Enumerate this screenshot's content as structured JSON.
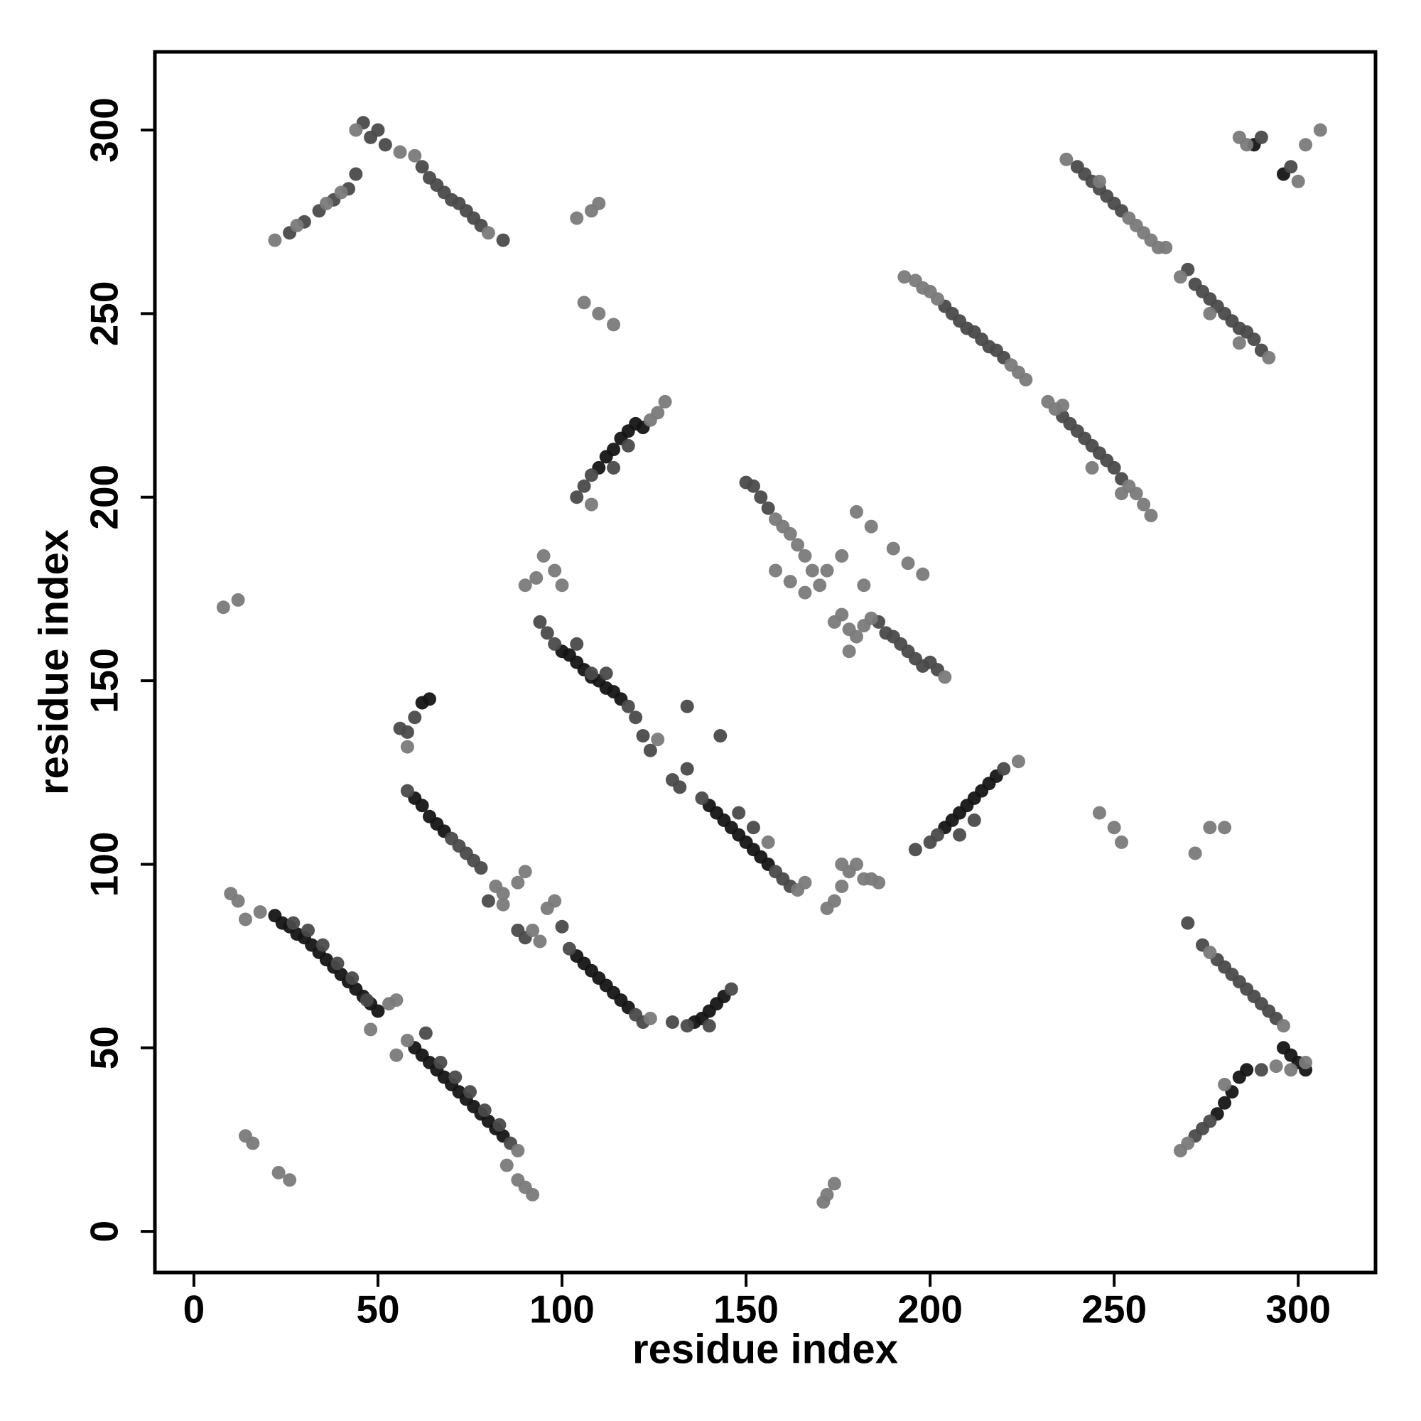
{
  "chart_data": {
    "type": "scatter",
    "xlabel": "residue index",
    "ylabel": "residue index",
    "xlim": [
      -10.6,
      321
    ],
    "ylim": [
      -11.2,
      321.3
    ],
    "xticks": [
      0,
      50,
      100,
      150,
      200,
      250,
      300
    ],
    "yticks": [
      0,
      50,
      100,
      150,
      200,
      250,
      300
    ],
    "series": [
      {
        "color": "#151515",
        "x": [
          22,
          24,
          26,
          28,
          30,
          32,
          34,
          36,
          38,
          40,
          42,
          44,
          46,
          48,
          50,
          60,
          62,
          64,
          66,
          68,
          70,
          72,
          74,
          76,
          78,
          80,
          82,
          84,
          110,
          112,
          114,
          116,
          118,
          120,
          122,
          100,
          102,
          104,
          106,
          108,
          110,
          112,
          114,
          116,
          140,
          142,
          144,
          146,
          148,
          150,
          152,
          154,
          156,
          104,
          106,
          108,
          110,
          112,
          114,
          116,
          118,
          136,
          138,
          140,
          142,
          144,
          204,
          206,
          208,
          210,
          212,
          214,
          216,
          218,
          60,
          62,
          64,
          66,
          68,
          62,
          64,
          296,
          298,
          300,
          302,
          278,
          280,
          282,
          284,
          286,
          288,
          296
        ],
        "values": [
          86,
          84,
          83,
          81,
          80,
          78,
          76,
          74,
          72,
          70,
          68,
          66,
          64,
          62,
          60,
          50,
          48,
          46,
          44,
          42,
          40,
          38,
          36,
          34,
          32,
          30,
          28,
          26,
          208,
          211,
          213,
          216,
          218,
          220,
          219,
          158,
          157,
          155,
          153,
          151,
          150,
          148,
          147,
          145,
          116,
          114,
          112,
          110,
          108,
          106,
          104,
          102,
          100,
          75,
          73,
          71,
          69,
          67,
          65,
          63,
          61,
          57,
          58,
          60,
          62,
          64,
          110,
          112,
          114,
          116,
          118,
          120,
          122,
          124,
          118,
          116,
          113,
          111,
          109,
          144,
          145,
          50,
          48,
          46,
          44,
          32,
          35,
          38,
          42,
          44,
          296,
          288
        ]
      },
      {
        "color": "#4a4a4a",
        "x": [
          27,
          31,
          35,
          39,
          43,
          47,
          63,
          67,
          71,
          75,
          79,
          83,
          86,
          26,
          30,
          34,
          38,
          42,
          44,
          46,
          48,
          50,
          52,
          62,
          64,
          66,
          68,
          70,
          72,
          74,
          76,
          78,
          84,
          104,
          106,
          108,
          114,
          118,
          94,
          96,
          98,
          104,
          108,
          112,
          118,
          120,
          122,
          124,
          130,
          132,
          138,
          158,
          160,
          162,
          134,
          143,
          148,
          152,
          58,
          58,
          70,
          72,
          74,
          76,
          78,
          80,
          56,
          60,
          88,
          90,
          100,
          102,
          120,
          122,
          130,
          134,
          140,
          146,
          150,
          152,
          154,
          156,
          186,
          188,
          190,
          192,
          194,
          196,
          198,
          200,
          202,
          196,
          200,
          202,
          220,
          208,
          212,
          204,
          206,
          208,
          210,
          212,
          214,
          216,
          218,
          220,
          236,
          238,
          240,
          242,
          244,
          246,
          248,
          250,
          252,
          240,
          242,
          244,
          246,
          248,
          250,
          252,
          270,
          272,
          274,
          276,
          278,
          280,
          282,
          284,
          286,
          288,
          290,
          270,
          274,
          278,
          280,
          282,
          284,
          286,
          288,
          290,
          292,
          294,
          272,
          274,
          276,
          290,
          290,
          298,
          134
        ],
        "values": [
          84,
          82,
          78,
          73,
          69,
          63,
          54,
          46,
          42,
          38,
          33,
          29,
          24,
          272,
          275,
          278,
          281,
          284,
          288,
          302,
          298,
          300,
          296,
          290,
          287,
          285,
          283,
          281,
          280,
          278,
          276,
          274,
          270,
          200,
          203,
          206,
          208,
          214,
          166,
          163,
          160,
          160,
          152,
          152,
          143,
          140,
          135,
          131,
          123,
          121,
          118,
          98,
          96,
          94,
          143,
          135,
          114,
          110,
          120,
          136,
          107,
          105,
          103,
          101,
          99,
          90,
          137,
          140,
          82,
          80,
          83,
          77,
          59,
          57,
          57,
          56,
          56,
          66,
          204,
          203,
          200,
          197,
          166,
          163,
          162,
          160,
          158,
          156,
          154,
          155,
          153,
          104,
          106,
          108,
          126,
          108,
          112,
          252,
          250,
          248,
          246,
          245,
          243,
          241,
          240,
          238,
          222,
          220,
          218,
          216,
          214,
          212,
          210,
          208,
          205,
          290,
          288,
          286,
          284,
          282,
          280,
          278,
          262,
          258,
          256,
          254,
          252,
          250,
          248,
          246,
          245,
          243,
          240,
          84,
          78,
          74,
          72,
          70,
          68,
          66,
          64,
          62,
          60,
          58,
          26,
          28,
          30,
          44,
          298,
          290,
          126
        ]
      },
      {
        "color": "#7a7a7a",
        "x": [
          8,
          12,
          10,
          12,
          14,
          18,
          16,
          14,
          23,
          26,
          104,
          108,
          110,
          106,
          110,
          114,
          171,
          172,
          174,
          246,
          250,
          252,
          272,
          276,
          280,
          284,
          286,
          300,
          302,
          306,
          48,
          53,
          55,
          55,
          58,
          85,
          88,
          90,
          92,
          88,
          22,
          28,
          36,
          40,
          44,
          56,
          60,
          80,
          124,
          126,
          128,
          108,
          90,
          93,
          95,
          98,
          100,
          126,
          164,
          166,
          156,
          58,
          82,
          84,
          84,
          88,
          90,
          92,
          94,
          96,
          98,
          124,
          158,
          160,
          162,
          164,
          166,
          168,
          166,
          170,
          172,
          174,
          176,
          178,
          180,
          182,
          184,
          204,
          176,
          180,
          184,
          190,
          194,
          198,
          158,
          162,
          178,
          182,
          224,
          172,
          174,
          176,
          178,
          180,
          182,
          184,
          186,
          176,
          193,
          196,
          198,
          200,
          202,
          222,
          224,
          226,
          232,
          234,
          254,
          256,
          258,
          260,
          236,
          244,
          252,
          237,
          254,
          256,
          258,
          260,
          262,
          264,
          246,
          268,
          292,
          276,
          284,
          276,
          296,
          302,
          294,
          298,
          268,
          270,
          280
        ],
        "values": [
          170,
          172,
          92,
          90,
          85,
          87,
          24,
          26,
          16,
          14,
          276,
          278,
          280,
          253,
          250,
          247,
          8,
          10,
          13,
          114,
          110,
          106,
          103,
          110,
          110,
          298,
          296,
          286,
          296,
          300,
          55,
          62,
          63,
          48,
          52,
          18,
          14,
          12,
          10,
          22,
          270,
          274,
          280,
          283,
          300,
          294,
          293,
          272,
          221,
          223,
          226,
          198,
          176,
          178,
          184,
          180,
          176,
          134,
          93,
          95,
          106,
          132,
          94,
          92,
          89,
          95,
          98,
          82,
          79,
          88,
          90,
          58,
          194,
          192,
          190,
          187,
          184,
          180,
          174,
          176,
          180,
          166,
          168,
          164,
          162,
          165,
          167,
          151,
          184,
          196,
          192,
          186,
          182,
          179,
          180,
          177,
          158,
          176,
          128,
          88,
          90,
          94,
          98,
          100,
          96,
          96,
          95,
          100,
          260,
          259,
          257,
          256,
          254,
          236,
          234,
          232,
          226,
          224,
          203,
          201,
          198,
          195,
          225,
          208,
          201,
          292,
          276,
          274,
          272,
          270,
          268,
          268,
          286,
          260,
          238,
          250,
          242,
          76,
          56,
          46,
          45,
          44,
          22,
          24,
          40
        ]
      }
    ]
  }
}
